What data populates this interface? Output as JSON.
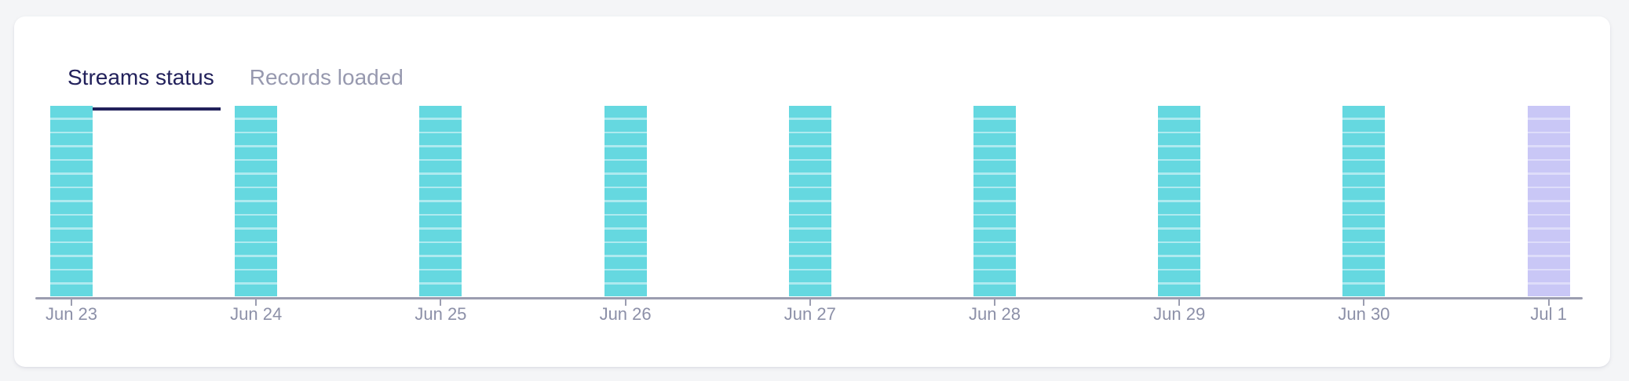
{
  "theme": {
    "page_bg": "#F4F5F7",
    "card_bg": "#FFFFFF"
  },
  "tabs": [
    {
      "label": "Streams status",
      "active": true
    },
    {
      "label": "Records loaded",
      "active": false
    }
  ],
  "chart_data": {
    "type": "bar",
    "subtype": "segmented-status-history",
    "title": "",
    "xlabel": "",
    "ylabel": "",
    "grid": false,
    "legend": false,
    "categories": [
      "Jun 23",
      "Jun 24",
      "Jun 25",
      "Jun 26",
      "Jun 27",
      "Jun 28",
      "Jun 29",
      "Jun 30",
      "Jul 1"
    ],
    "bars": [
      {
        "date": "Jun 23",
        "segments": 14,
        "variant": "teal"
      },
      {
        "date": "Jun 24",
        "segments": 14,
        "variant": "teal"
      },
      {
        "date": "Jun 25",
        "segments": 14,
        "variant": "teal"
      },
      {
        "date": "Jun 26",
        "segments": 14,
        "variant": "teal"
      },
      {
        "date": "Jun 27",
        "segments": 14,
        "variant": "teal"
      },
      {
        "date": "Jun 28",
        "segments": 14,
        "variant": "teal"
      },
      {
        "date": "Jun 29",
        "segments": 14,
        "variant": "teal"
      },
      {
        "date": "Jun 30",
        "segments": 14,
        "variant": "teal"
      },
      {
        "date": "Jul 1",
        "segments": 14,
        "variant": "lavender"
      }
    ],
    "colors": {
      "teal": "#65D8E0",
      "teal_divider": "#AEEAEF",
      "lavender": "#C9C7F6",
      "lavender_divider": "#DEDDFA",
      "axis_line": "#9B9DB0",
      "label": "#8C90A8",
      "tab_active": "#22215B",
      "tab_inactive": "#9799AF"
    },
    "note": "All 9 bars are full height (equal); each bar is split into 14 equal segments by thin light divider lines; the Jul 1 bar is lavender, all others teal."
  }
}
